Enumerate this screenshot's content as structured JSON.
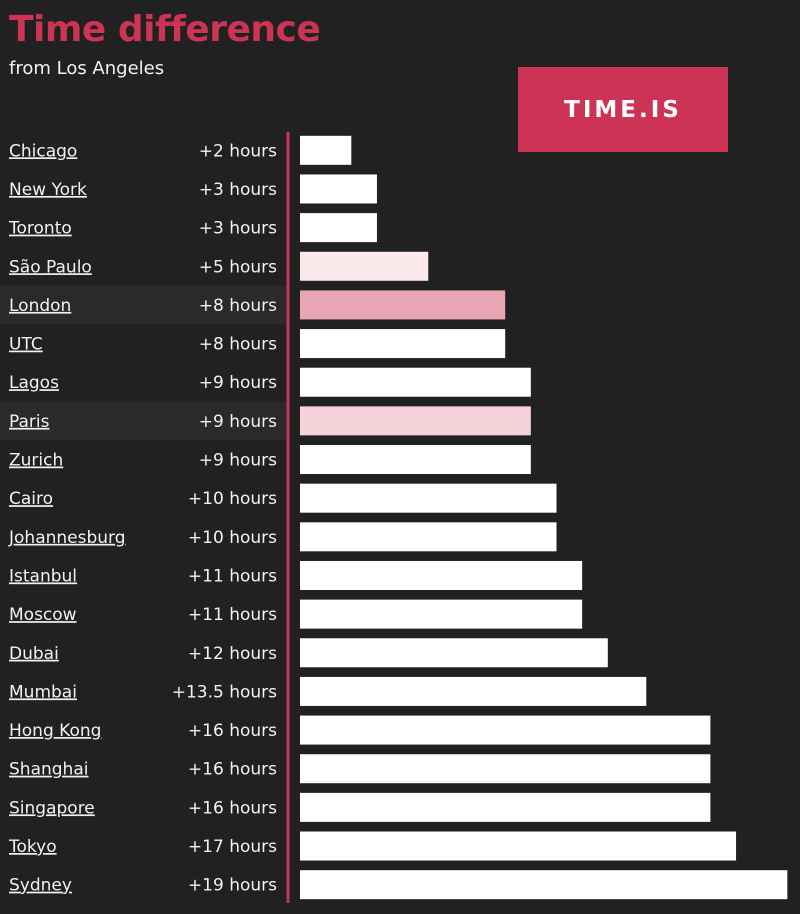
{
  "header": {
    "title": "Time difference",
    "subtitle": "from Los Angeles",
    "brand": "TIME.IS"
  },
  "colors": {
    "accent": "#cc3355",
    "background": "#212121",
    "bar_default": "#ffffff",
    "row_highlight": "#2a2a2a",
    "text": "#f2f2f2"
  },
  "chart_data": {
    "type": "bar",
    "orientation": "horizontal",
    "title": "Time difference",
    "subtitle": "from Los Angeles",
    "categories": [
      "Chicago",
      "New York",
      "Toronto",
      "São Paulo",
      "London",
      "UTC",
      "Lagos",
      "Paris",
      "Zurich",
      "Cairo",
      "Johannesburg",
      "Istanbul",
      "Moscow",
      "Dubai",
      "Mumbai",
      "Hong Kong",
      "Shanghai",
      "Singapore",
      "Tokyo",
      "Sydney"
    ],
    "values": [
      2,
      3,
      3,
      5,
      8,
      8,
      9,
      9,
      9,
      10,
      10,
      11,
      11,
      12,
      13.5,
      16,
      16,
      16,
      17,
      19
    ],
    "value_labels": [
      "+2 hours",
      "+3 hours",
      "+3 hours",
      "+5 hours",
      "+8 hours",
      "+8 hours",
      "+9 hours",
      "+9 hours",
      "+9 hours",
      "+10 hours",
      "+10 hours",
      "+11 hours",
      "+11 hours",
      "+12 hours",
      "+13.5 hours",
      "+16 hours",
      "+16 hours",
      "+16 hours",
      "+17 hours",
      "+19 hours"
    ],
    "bar_colors": [
      "#ffffff",
      "#ffffff",
      "#ffffff",
      "#fbe9ec",
      "#e8a5b4",
      "#ffffff",
      "#ffffff",
      "#f5d2da",
      "#ffffff",
      "#ffffff",
      "#ffffff",
      "#ffffff",
      "#ffffff",
      "#ffffff",
      "#ffffff",
      "#ffffff",
      "#ffffff",
      "#ffffff",
      "#ffffff",
      "#ffffff"
    ],
    "highlighted_rows": [
      "London",
      "Paris"
    ],
    "xlim": [
      0,
      19
    ],
    "grid": false,
    "legend": "none"
  }
}
